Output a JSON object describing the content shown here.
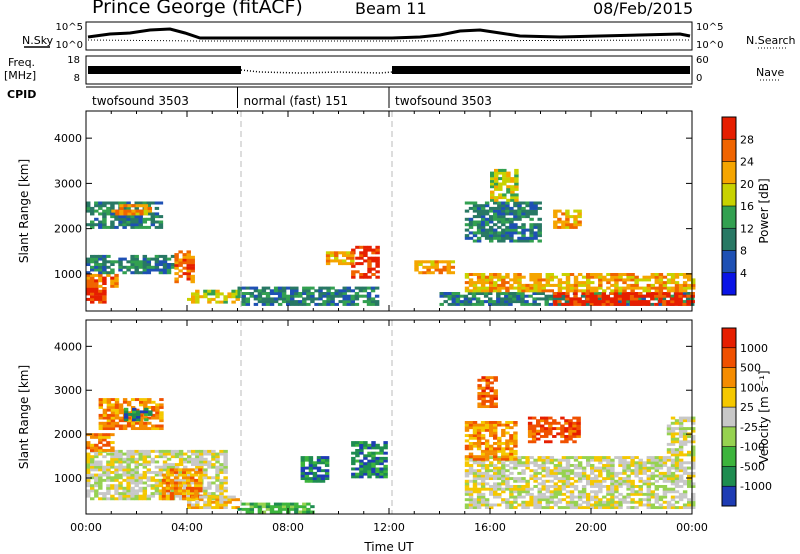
{
  "header": {
    "station": "Prince George (fitACF)",
    "beam": "Beam 11",
    "date": "08/Feb/2015"
  },
  "top_panels": {
    "noise_left_label": "N.Sky",
    "noise_left_ticks": [
      "10^5",
      "10^0"
    ],
    "noise_right_ticks": [
      "10^5",
      "10^0"
    ],
    "noise_right_label": "N.Search",
    "freq_label_line1": "Freq.",
    "freq_label_line2": "[MHz]",
    "freq_ticks": [
      "18",
      "8"
    ],
    "nave_ticks": [
      "60",
      "0"
    ],
    "nave_label": "Nave",
    "cpid_label": "CPID",
    "cpid_segments": [
      {
        "label": "twofsound 3503",
        "start_hr": 0,
        "end_hr": 6
      },
      {
        "label": "normal (fast) 151",
        "start_hr": 6,
        "end_hr": 12
      },
      {
        "label": "twofsound 3503",
        "start_hr": 12,
        "end_hr": 24
      }
    ]
  },
  "chart_data": [
    {
      "type": "heatmap",
      "title": "",
      "ylabel": "Slant Range [km]",
      "yticks": [
        "1000",
        "2000",
        "3000",
        "4000"
      ],
      "ylim": [
        180,
        4600
      ],
      "xlim": [
        0,
        24
      ],
      "colorbar": {
        "label": "Power [dB]",
        "ticks": [
          "4",
          "8",
          "12",
          "16",
          "20",
          "24",
          "28"
        ],
        "colors": [
          "#0a14e6",
          "#1e50b4",
          "#287864",
          "#32a050",
          "#c8d200",
          "#f5a500",
          "#f06400",
          "#e61e00"
        ]
      },
      "patches": [
        {
          "t0": 0.0,
          "t1": 0.7,
          "r0": 350,
          "r1": 700,
          "level": 7
        },
        {
          "t0": 0.0,
          "t1": 1.2,
          "r0": 700,
          "r1": 1000,
          "level": 6
        },
        {
          "t0": 0.0,
          "t1": 3.5,
          "r0": 1000,
          "r1": 1400,
          "level": 2
        },
        {
          "t0": 0.0,
          "t1": 3.0,
          "r0": 2000,
          "r1": 2600,
          "level": 2
        },
        {
          "t0": 1.0,
          "t1": 2.5,
          "r0": 2300,
          "r1": 2500,
          "level": 5
        },
        {
          "t0": 3.5,
          "t1": 4.2,
          "r0": 800,
          "r1": 1500,
          "level": 6
        },
        {
          "t0": 4.0,
          "t1": 6.0,
          "r0": 350,
          "r1": 600,
          "level": 4
        },
        {
          "t0": 6.0,
          "t1": 11.5,
          "r0": 300,
          "r1": 700,
          "level": 2
        },
        {
          "t0": 10.5,
          "t1": 11.6,
          "r0": 900,
          "r1": 1600,
          "level": 7
        },
        {
          "t0": 9.5,
          "t1": 10.5,
          "r0": 1200,
          "r1": 1500,
          "level": 5
        },
        {
          "t0": 13.0,
          "t1": 14.5,
          "r0": 1000,
          "r1": 1300,
          "level": 5
        },
        {
          "t0": 14.0,
          "t1": 24.0,
          "r0": 300,
          "r1": 600,
          "level": 2
        },
        {
          "t0": 18.5,
          "t1": 24.0,
          "r0": 300,
          "r1": 600,
          "level": 7
        },
        {
          "t0": 15.0,
          "t1": 24.0,
          "r0": 600,
          "r1": 1000,
          "level": 5
        },
        {
          "t0": 15.0,
          "t1": 18.0,
          "r0": 1700,
          "r1": 2600,
          "level": 2
        },
        {
          "t0": 18.5,
          "t1": 19.5,
          "r0": 2000,
          "r1": 2400,
          "level": 5
        },
        {
          "t0": 16.0,
          "t1": 17.0,
          "r0": 2600,
          "r1": 3300,
          "level": 4
        }
      ]
    },
    {
      "type": "heatmap",
      "title": "",
      "ylabel": "Slant Range [km]",
      "yticks": [
        "1000",
        "2000",
        "3000",
        "4000"
      ],
      "ylim": [
        180,
        4600
      ],
      "xlim": [
        0,
        24
      ],
      "xticks": [
        "00:00",
        "04:00",
        "08:00",
        "12:00",
        "16:00",
        "20:00",
        "00:00"
      ],
      "xlabel": "Time UT",
      "colorbar": {
        "label": "Velocity [m s⁻¹]",
        "ticks": [
          "1000",
          "500",
          "100",
          "25",
          "-25",
          "-100",
          "-500",
          "-1000"
        ],
        "colors": [
          "#1e3cb4",
          "#1e8c50",
          "#3cb43c",
          "#96d250",
          "#c8c8c8",
          "#f5c800",
          "#f58c00",
          "#f05000",
          "#e61e00"
        ]
      },
      "patches": [
        {
          "t0": 0.0,
          "t1": 5.5,
          "r0": 500,
          "r1": 1600,
          "level": 4
        },
        {
          "t0": 0.0,
          "t1": 1.0,
          "r0": 1600,
          "r1": 2000,
          "level": 6
        },
        {
          "t0": 0.5,
          "t1": 3.0,
          "r0": 2100,
          "r1": 2800,
          "level": 6
        },
        {
          "t0": 1.5,
          "t1": 2.5,
          "r0": 2300,
          "r1": 2600,
          "level": 1
        },
        {
          "t0": 3.0,
          "t1": 4.5,
          "r0": 500,
          "r1": 1200,
          "level": 6
        },
        {
          "t0": 4.0,
          "t1": 6.0,
          "r0": 300,
          "r1": 600,
          "level": 5
        },
        {
          "t0": 6.0,
          "t1": 9.0,
          "r0": 200,
          "r1": 400,
          "level": 2
        },
        {
          "t0": 10.5,
          "t1": 11.8,
          "r0": 1000,
          "r1": 1800,
          "level": 1
        },
        {
          "t0": 8.5,
          "t1": 9.5,
          "r0": 900,
          "r1": 1500,
          "level": 1
        },
        {
          "t0": 15.0,
          "t1": 24.0,
          "r0": 300,
          "r1": 1500,
          "level": 4
        },
        {
          "t0": 15.0,
          "t1": 17.0,
          "r0": 1400,
          "r1": 2300,
          "level": 6
        },
        {
          "t0": 17.5,
          "t1": 19.5,
          "r0": 1800,
          "r1": 2400,
          "level": 7
        },
        {
          "t0": 15.5,
          "t1": 16.2,
          "r0": 2600,
          "r1": 3300,
          "level": 7
        },
        {
          "t0": 23.0,
          "t1": 24.0,
          "r0": 1500,
          "r1": 2400,
          "level": 4
        }
      ]
    }
  ]
}
